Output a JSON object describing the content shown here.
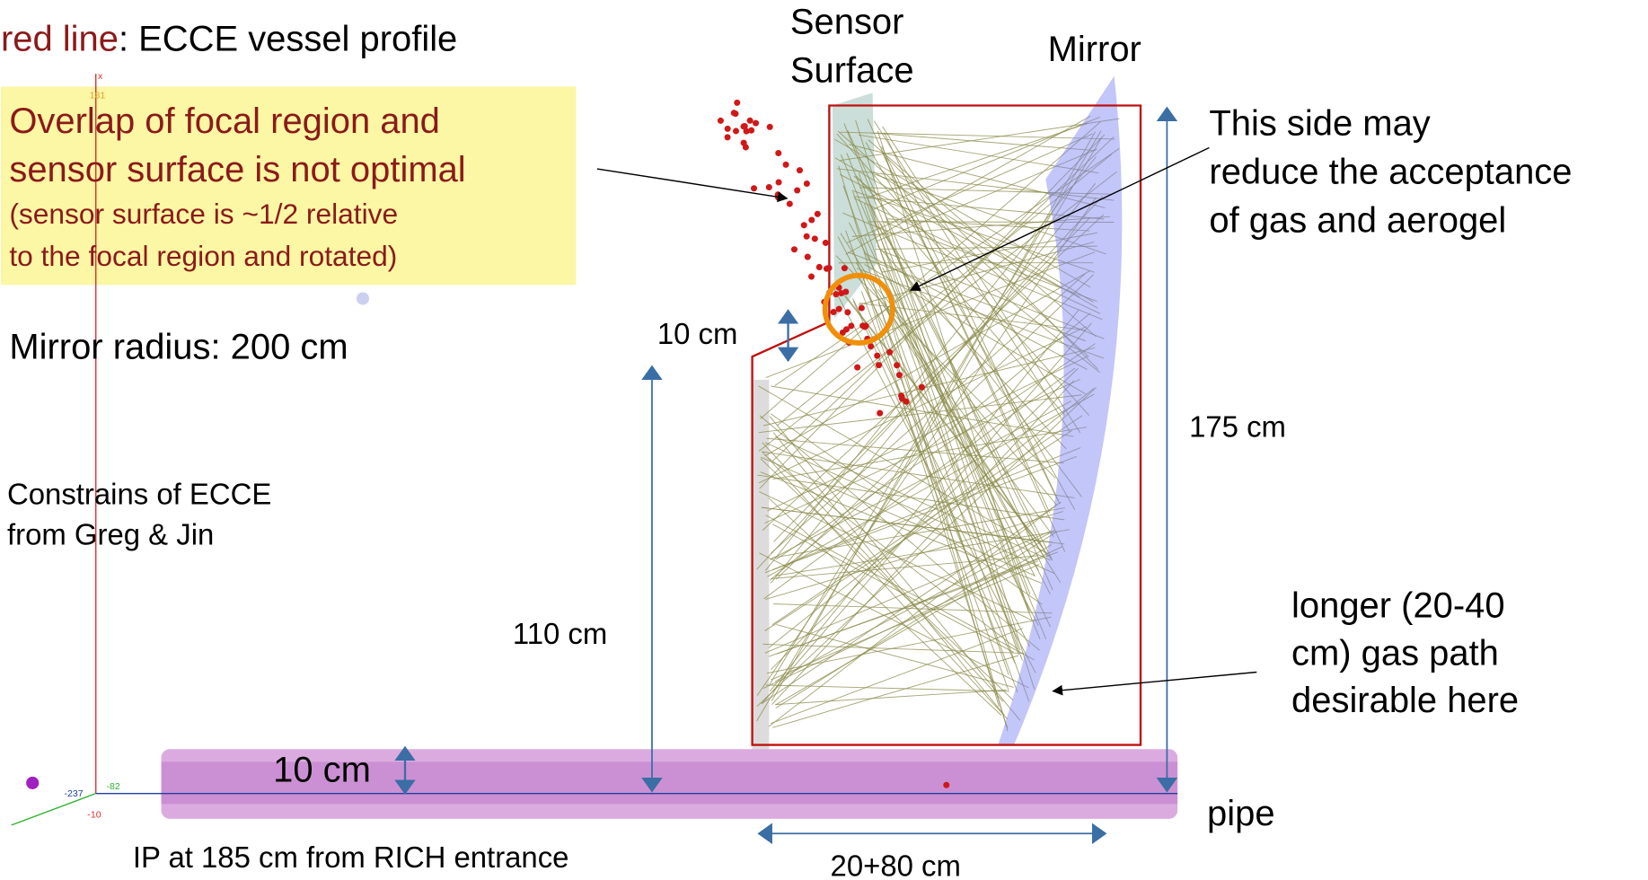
{
  "legend": {
    "key": "red line",
    "text": ": ECCE vessel profile"
  },
  "note": {
    "lines": [
      "Overlap of focal region and",
      "sensor surface is not optimal"
    ],
    "small_lines": [
      "(sensor surface is ~1/2  relative",
      "to the focal region and rotated)"
    ]
  },
  "mirror_radius": "Mirror radius: 200 cm",
  "constraints": [
    "Constrains of ECCE",
    "from Greg & Jin"
  ],
  "sensor_label": [
    "Sensor",
    "Surface"
  ],
  "mirror_label": "Mirror",
  "side_note": [
    "This side may",
    "reduce the acceptance",
    "of gas and aerogel"
  ],
  "dimensions": {
    "sensor_step": "10 cm",
    "height_total": "175 cm",
    "height_lower": "110 cm",
    "pipe_radius": "10 cm",
    "length": "20+80 cm"
  },
  "gas_path_note": [
    "longer (20-40",
    "cm) gas path",
    "desirable here"
  ],
  "pipe_label": "pipe",
  "ip_note": "IP at 185 cm from RICH entrance",
  "axis_labels": {
    "x": "x",
    "top": "181",
    "left": "-237",
    "mid": "-82",
    "bottom": "-10"
  }
}
